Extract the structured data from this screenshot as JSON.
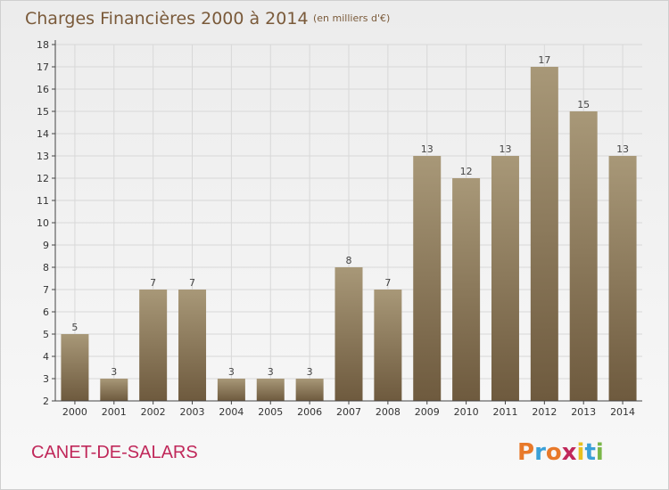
{
  "header": {
    "title": "Charges Financières 2000 à 2014",
    "subtitle": "(en milliers d'€)"
  },
  "footer": {
    "place": "CANET-DE-SALARS",
    "logo_text": "Proxiti",
    "logo_colors": [
      "#e8792a",
      "#3aa0d8",
      "#e8792a",
      "#c0285a",
      "#e8c020",
      "#3aa0d8",
      "#7ab648"
    ]
  },
  "colors": {
    "bar": "#8f7a5c",
    "bar_light": "#a89878",
    "bar_dark": "#6e5a3e",
    "grid": "#d8d8d8",
    "axis": "#444444"
  },
  "chart_data": {
    "type": "bar",
    "title": "Charges Financières 2000 à 2014",
    "subtitle": "(en milliers d'€)",
    "categories": [
      "2000",
      "2001",
      "2002",
      "2003",
      "2004",
      "2005",
      "2006",
      "2007",
      "2008",
      "2009",
      "2010",
      "2011",
      "2012",
      "2013",
      "2014"
    ],
    "values": [
      5,
      3,
      7,
      7,
      3,
      3,
      3,
      8,
      7,
      13,
      12,
      13,
      17,
      15,
      13
    ],
    "ylim": [
      2,
      18
    ],
    "yticks": [
      2,
      3,
      4,
      5,
      6,
      7,
      8,
      9,
      10,
      11,
      12,
      13,
      14,
      15,
      16,
      17,
      18
    ],
    "grid": true,
    "data_labels": true
  }
}
